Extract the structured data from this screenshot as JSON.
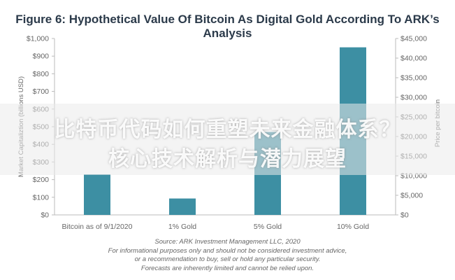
{
  "figure_title": "Figure 6: Hypothetical Value Of Bitcoin As Digital Gold According To ARK’s Analysis",
  "chart_data": {
    "type": "bar",
    "categories": [
      "Bitcoin as of 9/1/2020",
      "1% Gold",
      "5% Gold",
      "10% Gold"
    ],
    "series": [
      {
        "values": [
          230,
          93,
          470,
          950
        ]
      }
    ],
    "xlabel": "",
    "ylabel": "Market Capitaliztion (billions USD)",
    "y2label": "Price per bitcoin",
    "ylim": [
      0,
      1000
    ],
    "y2lim": [
      0,
      45000
    ],
    "yticks": [
      "$0",
      "$100",
      "$200",
      "$300",
      "$400",
      "$500",
      "$600",
      "$700",
      "$800",
      "$900",
      "$1,000"
    ],
    "y2ticks": [
      "$0",
      "$5,000",
      "$10,000",
      "$15,000",
      "$20,000",
      "$25,000",
      "$30,000",
      "$35,000",
      "$40,000",
      "$45,000"
    ],
    "grid": false,
    "colors": {
      "bar": "#3d8fa3",
      "axis": "#bbbbbb"
    }
  },
  "source_lines": [
    "Source: ARK Investment Management LLC, 2020",
    "For informational purposes only and should not be considered investment advice,",
    "or a recommendation to buy, sell or hold any particular security.",
    "Forecasts are inherently limited and cannot be relied upon."
  ],
  "overlay_lines": [
    "比特币代码如何重塑未来金融体系？",
    "核心技术解析与潜力展望"
  ]
}
